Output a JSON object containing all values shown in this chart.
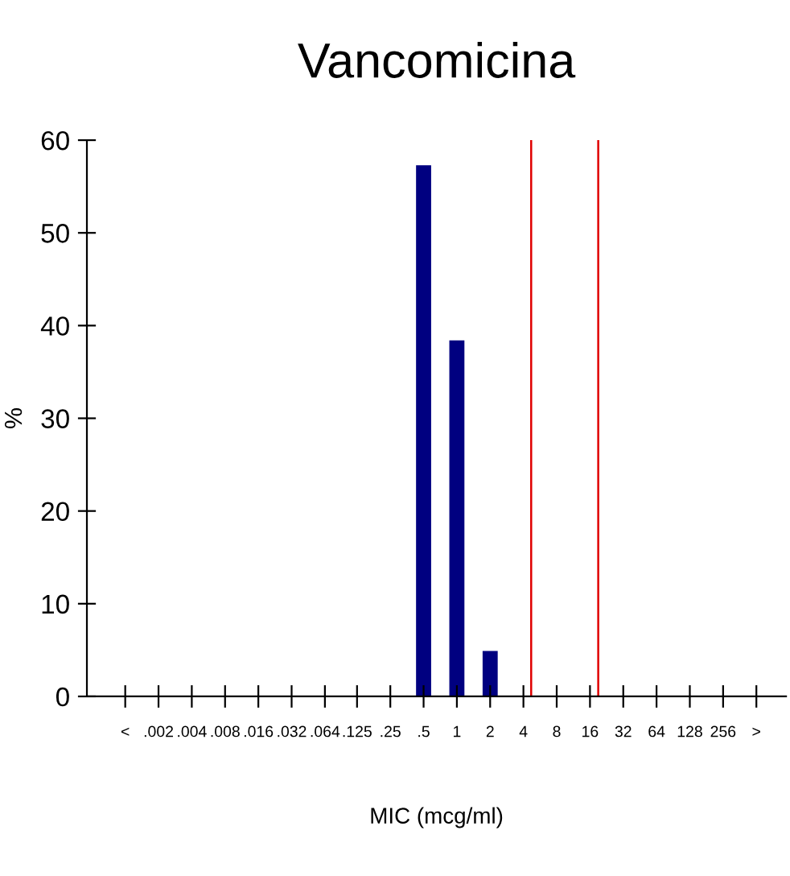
{
  "chart_data": {
    "type": "bar",
    "title": "Vancomicina",
    "xlabel": "MIC (mcg/ml)",
    "ylabel": "%",
    "x": [
      0.5,
      1,
      2
    ],
    "values": [
      57.2,
      38.3,
      4.8
    ],
    "color": "#000080",
    "log": "x",
    "xlim": [
      0.00045,
      950
    ],
    "ylim": [
      0,
      60
    ],
    "yticks": [
      0,
      10,
      20,
      30,
      40,
      50,
      60
    ],
    "xticks": [
      {
        "value": 0.001,
        "label": "<"
      },
      {
        "value": 0.002,
        "label": ".002"
      },
      {
        "value": 0.004,
        "label": ".004"
      },
      {
        "value": 0.008,
        "label": ".008"
      },
      {
        "value": 0.016,
        "label": ".016"
      },
      {
        "value": 0.032,
        "label": ".032"
      },
      {
        "value": 0.064,
        "label": ".064"
      },
      {
        "value": 0.125,
        "label": ".125"
      },
      {
        "value": 0.25,
        "label": ".25"
      },
      {
        "value": 0.5,
        "label": ".5"
      },
      1,
      2,
      4,
      8,
      16,
      32,
      64,
      128,
      256,
      {
        "value": 512,
        "label": ">"
      }
    ],
    "ref_lines": [
      {
        "axis": "x",
        "value": 4.7,
        "color": "#e00000"
      },
      {
        "axis": "x",
        "value": 19,
        "color": "#e00000"
      }
    ],
    "grid": false,
    "legend": false
  }
}
